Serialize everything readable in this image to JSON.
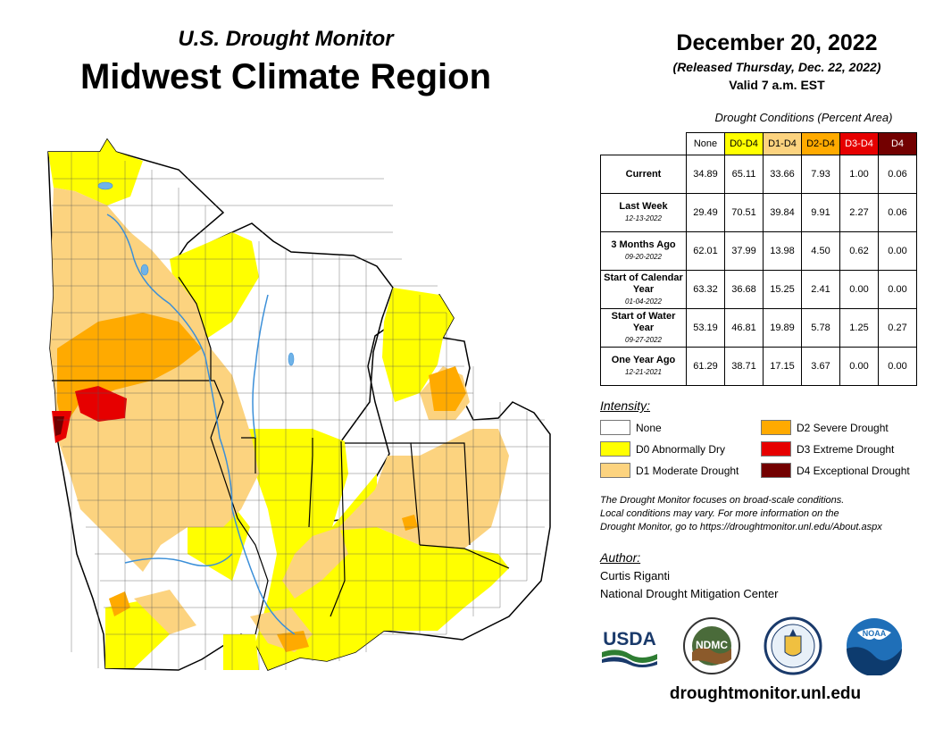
{
  "header": {
    "subtitle": "U.S. Drought Monitor",
    "title": "Midwest Climate Region",
    "date": "December 20, 2022",
    "released": "(Released Thursday, Dec. 22, 2022)",
    "valid": "Valid 7 a.m. EST"
  },
  "conditions": {
    "caption": "Drought Conditions (Percent Area)",
    "columns": [
      "None",
      "D0-D4",
      "D1-D4",
      "D2-D4",
      "D3-D4",
      "D4"
    ],
    "rows": [
      {
        "label": "Current",
        "date": "",
        "values": [
          "34.89",
          "65.11",
          "33.66",
          "7.93",
          "1.00",
          "0.06"
        ]
      },
      {
        "label": "Last Week",
        "date": "12-13-2022",
        "values": [
          "29.49",
          "70.51",
          "39.84",
          "9.91",
          "2.27",
          "0.06"
        ]
      },
      {
        "label": "3 Months Ago",
        "date": "09-20-2022",
        "values": [
          "62.01",
          "37.99",
          "13.98",
          "4.50",
          "0.62",
          "0.00"
        ]
      },
      {
        "label": "Start of Calendar Year",
        "date": "01-04-2022",
        "values": [
          "63.32",
          "36.68",
          "15.25",
          "2.41",
          "0.00",
          "0.00"
        ]
      },
      {
        "label": "Start of Water Year",
        "date": "09-27-2022",
        "values": [
          "53.19",
          "46.81",
          "19.89",
          "5.78",
          "1.25",
          "0.27"
        ]
      },
      {
        "label": "One Year Ago",
        "date": "12-21-2021",
        "values": [
          "61.29",
          "38.71",
          "17.15",
          "3.67",
          "0.00",
          "0.00"
        ]
      }
    ]
  },
  "intensity": {
    "title": "Intensity:",
    "items": [
      {
        "label": "None",
        "color": "#ffffff"
      },
      {
        "label": "D0 Abnormally Dry",
        "color": "#ffff00"
      },
      {
        "label": "D1 Moderate Drought",
        "color": "#fcd37f"
      },
      {
        "label": "D2 Severe Drought",
        "color": "#ffaa00"
      },
      {
        "label": "D3 Extreme Drought",
        "color": "#e60000"
      },
      {
        "label": "D4 Exceptional Drought",
        "color": "#730000"
      }
    ]
  },
  "note": {
    "line1": "The Drought Monitor focuses on broad-scale conditions.",
    "line2": "Local conditions may vary. For more information on the",
    "line3": "Drought Monitor, go to https://droughtmonitor.unl.edu/About.aspx"
  },
  "author": {
    "title": "Author:",
    "name": "Curtis Riganti",
    "org": "National Drought Mitigation Center"
  },
  "logos": {
    "usda": "USDA",
    "ndmc": "NDMC",
    "noaa": "NOAA"
  },
  "website": "droughtmonitor.unl.edu"
}
